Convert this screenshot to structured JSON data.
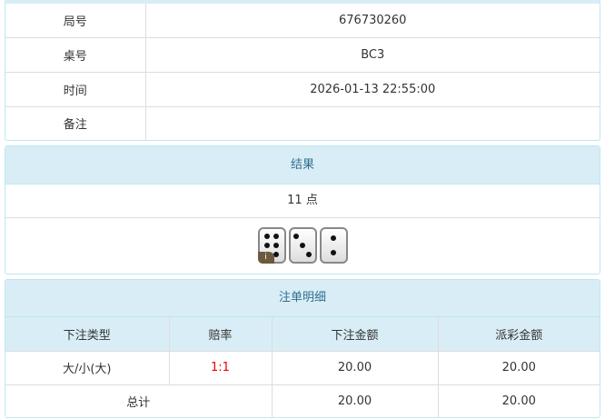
{
  "info": {
    "rows": [
      {
        "label": "局号",
        "value": "676730260"
      },
      {
        "label": "桌号",
        "value": "BC3"
      },
      {
        "label": "时间",
        "value": "2026-01-13 22:55:00"
      },
      {
        "label": "备注",
        "value": ""
      }
    ]
  },
  "result": {
    "title": "结果",
    "points": "11 点",
    "dice": [
      6,
      3,
      2
    ],
    "info_badge": "i"
  },
  "bets": {
    "title": "注单明细",
    "headers": [
      "下注类型",
      "赔率",
      "下注金额",
      "派彩金额"
    ],
    "rows": [
      {
        "type": "大/小(大)",
        "odds": "1:1",
        "amount": "20.00",
        "payout": "20.00"
      }
    ],
    "total": {
      "label": "总计",
      "amount": "20.00",
      "payout": "20.00"
    }
  },
  "colors": {
    "header_bg": "#d9edf7",
    "odds": "#e00000"
  }
}
